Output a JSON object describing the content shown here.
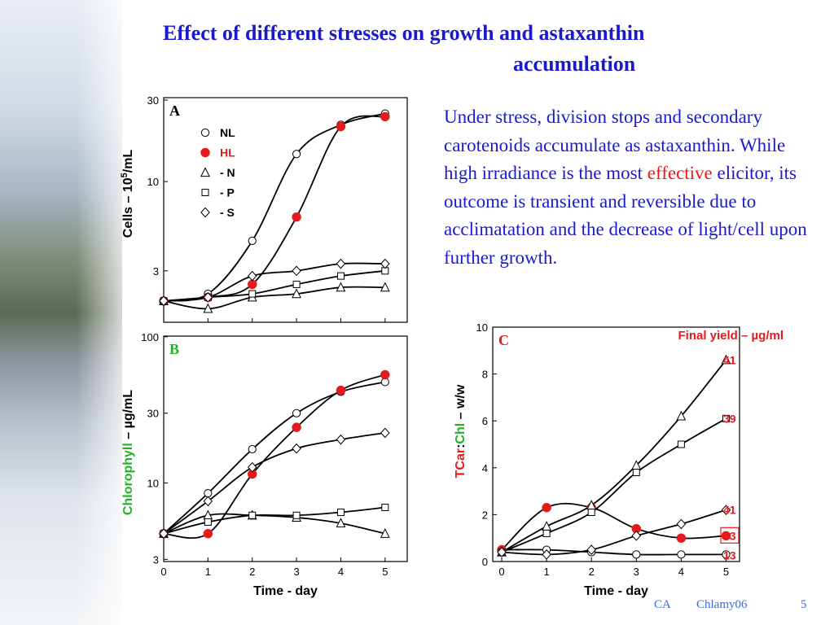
{
  "slide": {
    "title_line1": "Effect of different stresses on growth and astaxanthin",
    "title_line2": "accumulation",
    "paragraph": {
      "before": "Under stress, division stops and secondary carotenoids accumulate as astaxanthin. While high irradiance is the most ",
      "highlight": "effective",
      "after": " elicitor, its outcome is transient and reversible due to acclimatation and the decrease of light/cell upon further growth."
    },
    "footer": {
      "left": "CA",
      "middle": "Chlamy06",
      "page": "5"
    }
  },
  "colors": {
    "title": "#1a1acc",
    "red": "#e41a1c",
    "green": "#22b022",
    "black": "#000000",
    "footer": "#3a6fd0"
  },
  "chart_data": [
    {
      "panel_label": "A",
      "type": "line",
      "ylabel_main": "Cells – 10",
      "ylabel_sup": "5",
      "ylabel_tail": "/mL",
      "y_scale": "log",
      "ylim": [
        1.5,
        31
      ],
      "xlim": [
        0,
        5.5
      ],
      "yticks": [
        3,
        10,
        30
      ],
      "x": [
        0,
        1,
        2,
        3,
        4,
        5
      ],
      "legend": [
        {
          "marker": "circle-open",
          "label": "NL",
          "color": "#000000"
        },
        {
          "marker": "circle-filled",
          "label": "HL",
          "color": "#e41a1c"
        },
        {
          "marker": "triangle",
          "label": "- N",
          "color": "#000000"
        },
        {
          "marker": "square",
          "label": "- P",
          "color": "#000000"
        },
        {
          "marker": "diamond",
          "label": "- S",
          "color": "#000000"
        }
      ],
      "series": [
        {
          "name": "NL",
          "marker": "circle-open",
          "values": [
            2.0,
            2.2,
            4.5,
            14.5,
            21.5,
            25.0
          ]
        },
        {
          "name": "HL",
          "marker": "circle-filled",
          "values": [
            2.0,
            2.1,
            2.5,
            6.2,
            21.0,
            24.0
          ]
        },
        {
          "name": "- N",
          "marker": "triangle",
          "values": [
            2.0,
            1.8,
            2.1,
            2.2,
            2.4,
            2.4
          ]
        },
        {
          "name": "- P",
          "marker": "square",
          "values": [
            2.0,
            2.1,
            2.2,
            2.5,
            2.8,
            3.0
          ]
        },
        {
          "name": "- S",
          "marker": "diamond",
          "values": [
            2.0,
            2.1,
            2.8,
            3.0,
            3.3,
            3.3
          ]
        }
      ]
    },
    {
      "panel_label": "B",
      "type": "line",
      "ylabel_colored": "Chlorophyll",
      "ylabel_rest": " – µg/mL",
      "y_scale": "log",
      "ylim": [
        2.9,
        101
      ],
      "xlim": [
        0,
        5.5
      ],
      "yticks": [
        3,
        10,
        30,
        100
      ],
      "xticks": [
        0,
        1,
        2,
        3,
        4,
        5
      ],
      "xlabel": "Time - day",
      "x": [
        0,
        1,
        2,
        3,
        4,
        5
      ],
      "series": [
        {
          "name": "NL",
          "marker": "circle-open",
          "values": [
            4.5,
            8.5,
            17.0,
            30.0,
            42.0,
            49.0
          ]
        },
        {
          "name": "HL",
          "marker": "circle-filled",
          "values": [
            4.5,
            4.5,
            11.5,
            24.0,
            43.0,
            55.0
          ]
        },
        {
          "name": "- N",
          "marker": "triangle",
          "values": [
            4.5,
            6.0,
            6.0,
            5.8,
            5.3,
            4.5
          ]
        },
        {
          "name": "- P",
          "marker": "square",
          "values": [
            4.5,
            5.4,
            6.0,
            6.0,
            6.3,
            6.8
          ]
        },
        {
          "name": "- S",
          "marker": "diamond",
          "values": [
            4.5,
            7.5,
            12.8,
            17.2,
            19.8,
            22.0
          ]
        }
      ]
    },
    {
      "panel_label": "C",
      "type": "line",
      "ylabel_tcar": "TCar",
      "ylabel_sep": ":",
      "ylabel_chl": "Chl",
      "ylabel_tail": " – w/w",
      "ylim": [
        0,
        10
      ],
      "xlim": [
        -0.2,
        5.3
      ],
      "yticks": [
        0,
        2,
        4,
        6,
        8,
        10
      ],
      "xticks": [
        0,
        1,
        2,
        3,
        4,
        5
      ],
      "xlabel": "Time - day",
      "annotation": "Final yield – µg/ml",
      "x": [
        0,
        1,
        2,
        3,
        4,
        5
      ],
      "series": [
        {
          "name": "NL",
          "marker": "circle-open",
          "values": [
            0.5,
            0.5,
            0.4,
            0.3,
            0.3,
            0.3
          ],
          "final_yield": "13"
        },
        {
          "name": "HL",
          "marker": "circle-filled",
          "values": [
            0.5,
            2.3,
            2.3,
            1.4,
            1.0,
            1.1
          ],
          "final_yield": "53"
        },
        {
          "name": "- N",
          "marker": "triangle",
          "values": [
            0.4,
            1.5,
            2.4,
            4.1,
            6.2,
            8.6
          ],
          "final_yield": "41"
        },
        {
          "name": "- P",
          "marker": "square",
          "values": [
            0.4,
            1.2,
            2.1,
            3.8,
            5.0,
            6.1
          ],
          "final_yield": "39"
        },
        {
          "name": "- S",
          "marker": "diamond",
          "values": [
            0.4,
            0.3,
            0.5,
            1.1,
            1.6,
            2.2
          ],
          "final_yield": "41"
        }
      ]
    }
  ]
}
